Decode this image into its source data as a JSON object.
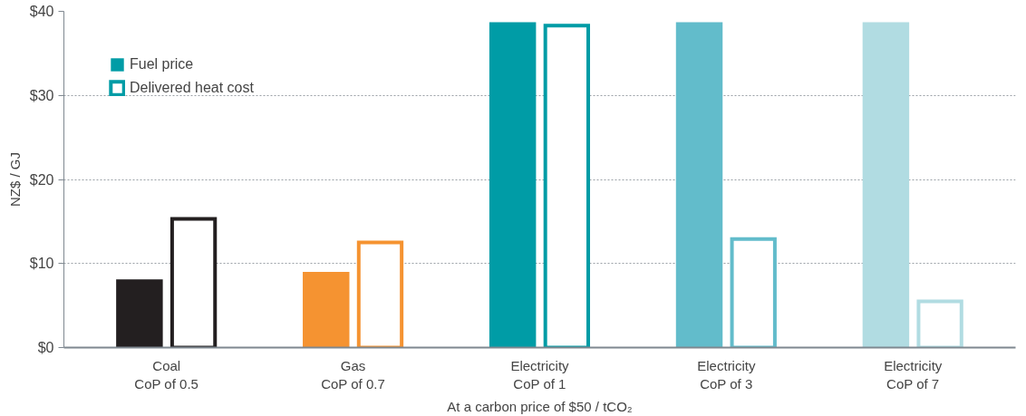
{
  "chart_data": {
    "type": "bar",
    "categories": [
      "Coal\nCoP of 0.5",
      "Gas\nCoP of 0.7",
      "Electricity\nCoP of 1",
      "Electricity\nCoP of 3",
      "Electricity\nCoP of 7"
    ],
    "series": [
      {
        "name": "Fuel price",
        "color": "#009ca6",
        "colors": [
          "#231f20",
          "#f59331",
          "#009ca6",
          "#62bccb",
          "#b1dce2"
        ],
        "values": [
          8.1,
          9.0,
          38.7,
          38.7,
          38.7
        ]
      },
      {
        "name": "Delivered heat cost",
        "color": "#009ca6",
        "colors": [
          "#231f20",
          "#f59331",
          "#009ca6",
          "#62bccb",
          "#b1dce2"
        ],
        "values": [
          15.3,
          12.5,
          38.3,
          12.9,
          5.5
        ]
      }
    ],
    "xlabel": "At a carbon price of $50 / tCO₂",
    "ylabel": "NZ$ / GJ",
    "ylim": [
      0,
      40
    ],
    "yticks": [
      {
        "value": 0,
        "label": "$0"
      },
      {
        "value": 10,
        "label": "$10"
      },
      {
        "value": 20,
        "label": "$20"
      },
      {
        "value": 30,
        "label": "$30"
      },
      {
        "value": 40,
        "label": "$40"
      }
    ],
    "grid": "y",
    "legend": "top left"
  }
}
